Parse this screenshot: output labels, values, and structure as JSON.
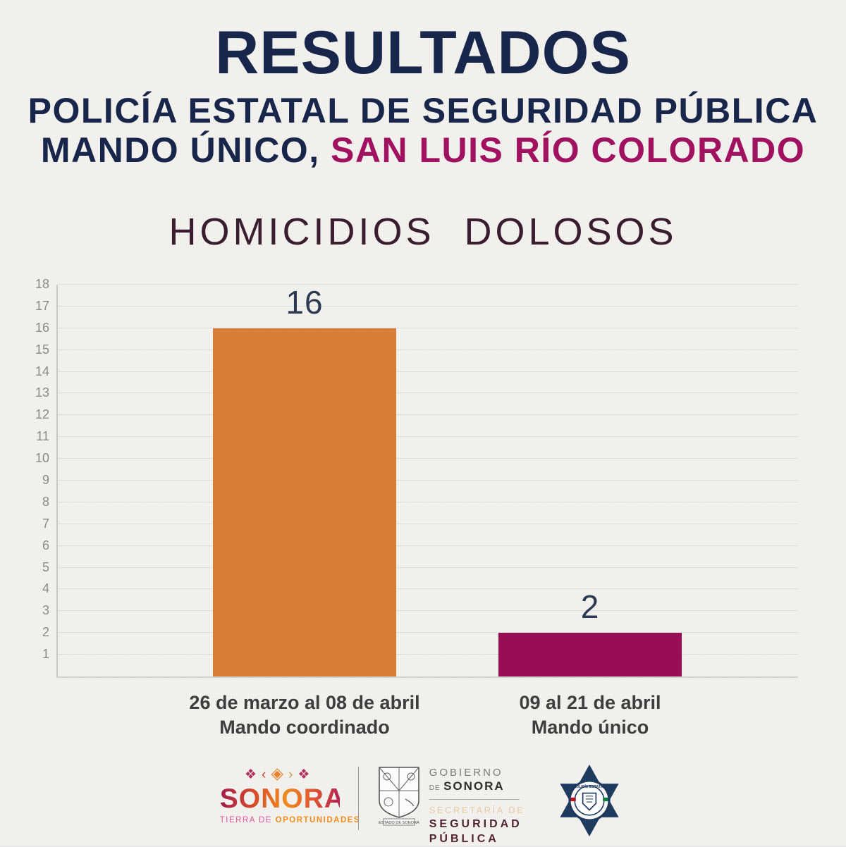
{
  "header": {
    "title": "RESULTADOS",
    "subtitle": "POLICÍA ESTATAL DE SEGURIDAD PÚBLICA",
    "subtitle2_prefix": "MANDO ÚNICO, ",
    "subtitle2_highlight": "SAN LUIS RÍO COLORADO"
  },
  "chart_data": {
    "type": "bar",
    "title": "HOMICIDIOS DOLOSOS",
    "categories": [
      {
        "line1": "26 de marzo al 08 de abril",
        "line2": "Mando coordinado"
      },
      {
        "line1": "09 al 21 de abril",
        "line2": "Mando único"
      }
    ],
    "values": [
      16,
      2
    ],
    "value_labels": [
      "16",
      "2"
    ],
    "bar_colors": [
      "#d97d36",
      "#970d56"
    ],
    "ylim": [
      0,
      18
    ],
    "yticks": [
      1,
      2,
      3,
      4,
      5,
      6,
      7,
      8,
      9,
      10,
      11,
      12,
      13,
      14,
      15,
      16,
      17,
      18
    ],
    "grid": true,
    "legend": false,
    "xlabel": "",
    "ylabel": ""
  },
  "footer": {
    "sonora": {
      "diamonds": [
        "❖",
        "‹",
        "◈",
        "›",
        "❖"
      ],
      "name": "SONORA",
      "tagline_light": "TIERRA DE",
      "tagline_bold": "OPORTUNIDADES"
    },
    "government": {
      "shield_caption": "ESTADO DE SONORA",
      "gobierno": "GOBIERNO",
      "de": "DE",
      "sonora": "SONORA",
      "secretaria": "SECRETARÍA DE",
      "seguridad": "SEGURIDAD",
      "publica": "PÚBLICA"
    },
    "badge": {
      "label": "POLICÍA ESTATAL"
    }
  },
  "colors": {
    "navy": "#19264b",
    "magenta": "#a01260",
    "plum_title": "#3b1d30",
    "bar_orange": "#d97d36",
    "bar_magenta": "#970d56",
    "category_label": "#3f3e3e",
    "ytick": "#8a8a8a",
    "gridline": "#dcdbd8"
  }
}
